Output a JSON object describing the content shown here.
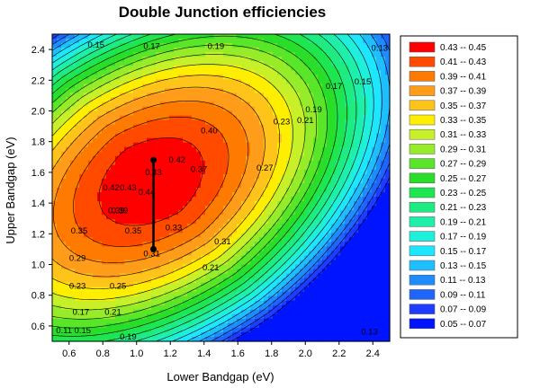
{
  "chart_data": {
    "type": "heatmap",
    "subtype": "filled-contour",
    "title": "Double Junction efficiencies",
    "xlabel": "Lower Bandgap (eV)",
    "ylabel": "Upper Bandgap (eV)",
    "xlim": [
      0.5,
      2.5
    ],
    "ylim": [
      0.5,
      2.5
    ],
    "xticks": [
      "0.6",
      "0.8",
      "1.0",
      "1.2",
      "1.4",
      "1.6",
      "1.8",
      "2.0",
      "2.2",
      "2.4"
    ],
    "yticks": [
      "0.6",
      "0.8",
      "1.0",
      "1.2",
      "1.4",
      "1.6",
      "1.8",
      "2.0",
      "2.2",
      "2.4"
    ],
    "legend_position": "right",
    "legend": [
      {
        "label": "0.43  --  0.45",
        "color": "#ff0000"
      },
      {
        "label": "0.41  --  0.43",
        "color": "#ff4a00"
      },
      {
        "label": "0.39  --  0.41",
        "color": "#ff7a00"
      },
      {
        "label": "0.37  --  0.39",
        "color": "#ff9d1a"
      },
      {
        "label": "0.35  --  0.37",
        "color": "#ffc41a"
      },
      {
        "label": "0.33  --  0.35",
        "color": "#ffee00"
      },
      {
        "label": "0.31  --  0.33",
        "color": "#c8f028"
      },
      {
        "label": "0.29  --  0.31",
        "color": "#96ec28"
      },
      {
        "label": "0.27  --  0.29",
        "color": "#5ae628"
      },
      {
        "label": "0.25  --  0.27",
        "color": "#28de28"
      },
      {
        "label": "0.23  --  0.25",
        "color": "#1ee650"
      },
      {
        "label": "0.21  --  0.23",
        "color": "#1eeb82"
      },
      {
        "label": "0.19  --  0.21",
        "color": "#1ef0aa"
      },
      {
        "label": "0.17  --  0.19",
        "color": "#1ef0dc"
      },
      {
        "label": "0.15  --  0.17",
        "color": "#1ee6ff"
      },
      {
        "label": "0.13  --  0.15",
        "color": "#1ebeff"
      },
      {
        "label": "0.11  --  0.13",
        "color": "#1e8cff"
      },
      {
        "label": "0.09  --  0.11",
        "color": "#1e64ff"
      },
      {
        "label": "0.07  --  0.09",
        "color": "#1e3cff"
      },
      {
        "label": "0.05  --  0.07",
        "color": "#0014ff"
      }
    ],
    "peak": {
      "x": 1.1,
      "y": 1.55,
      "value": 0.45
    },
    "contour_labels": [
      {
        "text": "0.15",
        "x": 0.76,
        "y": 2.43
      },
      {
        "text": "0.17",
        "x": 1.09,
        "y": 2.42
      },
      {
        "text": "0.19",
        "x": 1.47,
        "y": 2.42
      },
      {
        "text": "0.13",
        "x": 2.44,
        "y": 2.41
      },
      {
        "text": "0.17",
        "x": 2.17,
        "y": 2.16
      },
      {
        "text": "0.15",
        "x": 2.34,
        "y": 2.19
      },
      {
        "text": "0.19",
        "x": 2.05,
        "y": 2.01
      },
      {
        "text": "0.23",
        "x": 1.86,
        "y": 1.93
      },
      {
        "text": "0.21",
        "x": 2.0,
        "y": 1.94
      },
      {
        "text": "0.40",
        "x": 1.43,
        "y": 1.87
      },
      {
        "text": "0.42",
        "x": 1.24,
        "y": 1.68
      },
      {
        "text": "0.43",
        "x": 1.1,
        "y": 1.6
      },
      {
        "text": "0.37",
        "x": 1.37,
        "y": 1.62
      },
      {
        "text": "0.27",
        "x": 1.76,
        "y": 1.63
      },
      {
        "text": "0.42",
        "x": 0.85,
        "y": 1.5
      },
      {
        "text": "0.43",
        "x": 0.95,
        "y": 1.5
      },
      {
        "text": "0.44",
        "x": 1.06,
        "y": 1.47
      },
      {
        "text": "0.39",
        "x": 0.88,
        "y": 1.35
      },
      {
        "text": "0.39",
        "x": 0.9,
        "y": 1.35
      },
      {
        "text": "0.35",
        "x": 0.66,
        "y": 1.22
      },
      {
        "text": "0.35",
        "x": 0.98,
        "y": 1.22
      },
      {
        "text": "0.33",
        "x": 1.22,
        "y": 1.24
      },
      {
        "text": "0.31",
        "x": 1.51,
        "y": 1.15
      },
      {
        "text": "0.31",
        "x": 1.09,
        "y": 1.07
      },
      {
        "text": "0.29",
        "x": 0.65,
        "y": 1.04
      },
      {
        "text": "0.21",
        "x": 1.44,
        "y": 0.98
      },
      {
        "text": "0.23",
        "x": 0.65,
        "y": 0.86
      },
      {
        "text": "0.25",
        "x": 0.89,
        "y": 0.86
      },
      {
        "text": "0.17",
        "x": 0.67,
        "y": 0.69
      },
      {
        "text": "0.21",
        "x": 0.86,
        "y": 0.69
      },
      {
        "text": "0.11",
        "x": 0.57,
        "y": 0.57
      },
      {
        "text": "0.15",
        "x": 0.68,
        "y": 0.57
      },
      {
        "text": "0.19",
        "x": 0.95,
        "y": 0.53
      },
      {
        "text": "0.13",
        "x": 2.38,
        "y": 0.56
      }
    ],
    "marker_line": {
      "x": 1.1,
      "y_start": 1.68,
      "y_end": 1.1
    }
  }
}
